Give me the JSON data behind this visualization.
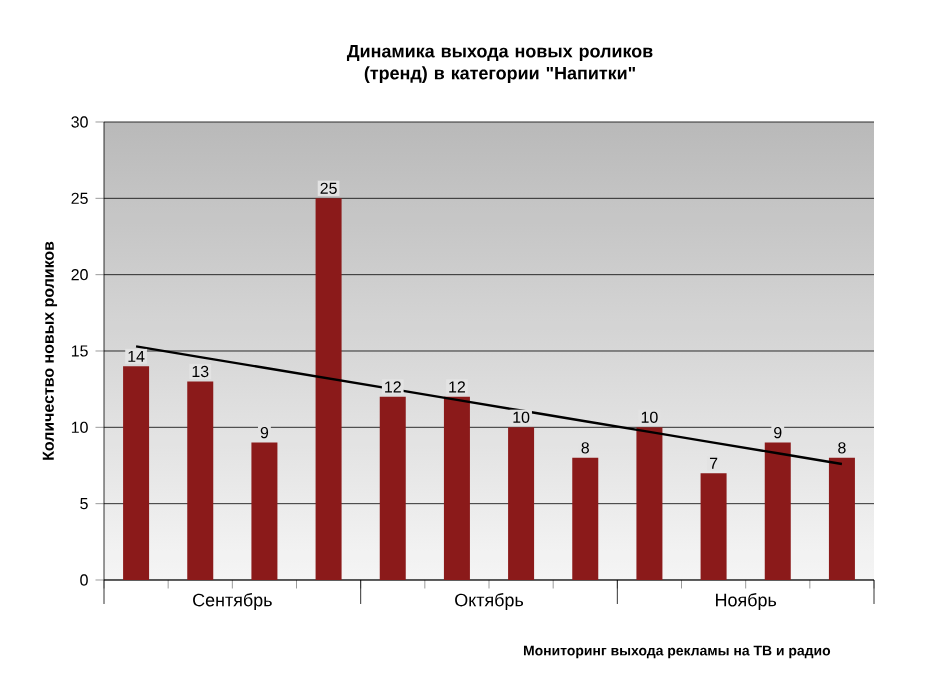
{
  "chart_data": {
    "type": "bar",
    "title": "Динамика выхода новых роликов (тренд) в категории \"Напитки\"",
    "ylabel": "Количество новых роликов",
    "categories": [
      null,
      null,
      null,
      null,
      null,
      null,
      null,
      null,
      null,
      null,
      null,
      null
    ],
    "series": [
      {
        "color": "#8b1a1a",
        "values": [
          14,
          13,
          9,
          25,
          12,
          12,
          10,
          8,
          10,
          7,
          9,
          8
        ],
        "value_labels": [
          "14",
          "13",
          "9",
          "25",
          "12",
          "12",
          "10",
          "8",
          "10",
          "7",
          "9",
          "8"
        ]
      },
      {
        "type": "line",
        "color": "#000000",
        "values": [
          15.3,
          14.6,
          13.9,
          13.2,
          12.5,
          11.8,
          11.1,
          10.4,
          9.7,
          9.0,
          8.3,
          7.6
        ]
      }
    ],
    "ylim": [
      0,
      30
    ],
    "yticks": [
      0,
      5,
      10,
      15,
      20,
      25,
      30
    ],
    "grid": "y",
    "marker": "none",
    "annotations": [
      "Сентябрь",
      "Октябрь",
      "Ноябрь",
      "Мониторинг выхода рекламы на ТВ и радио"
    ]
  }
}
